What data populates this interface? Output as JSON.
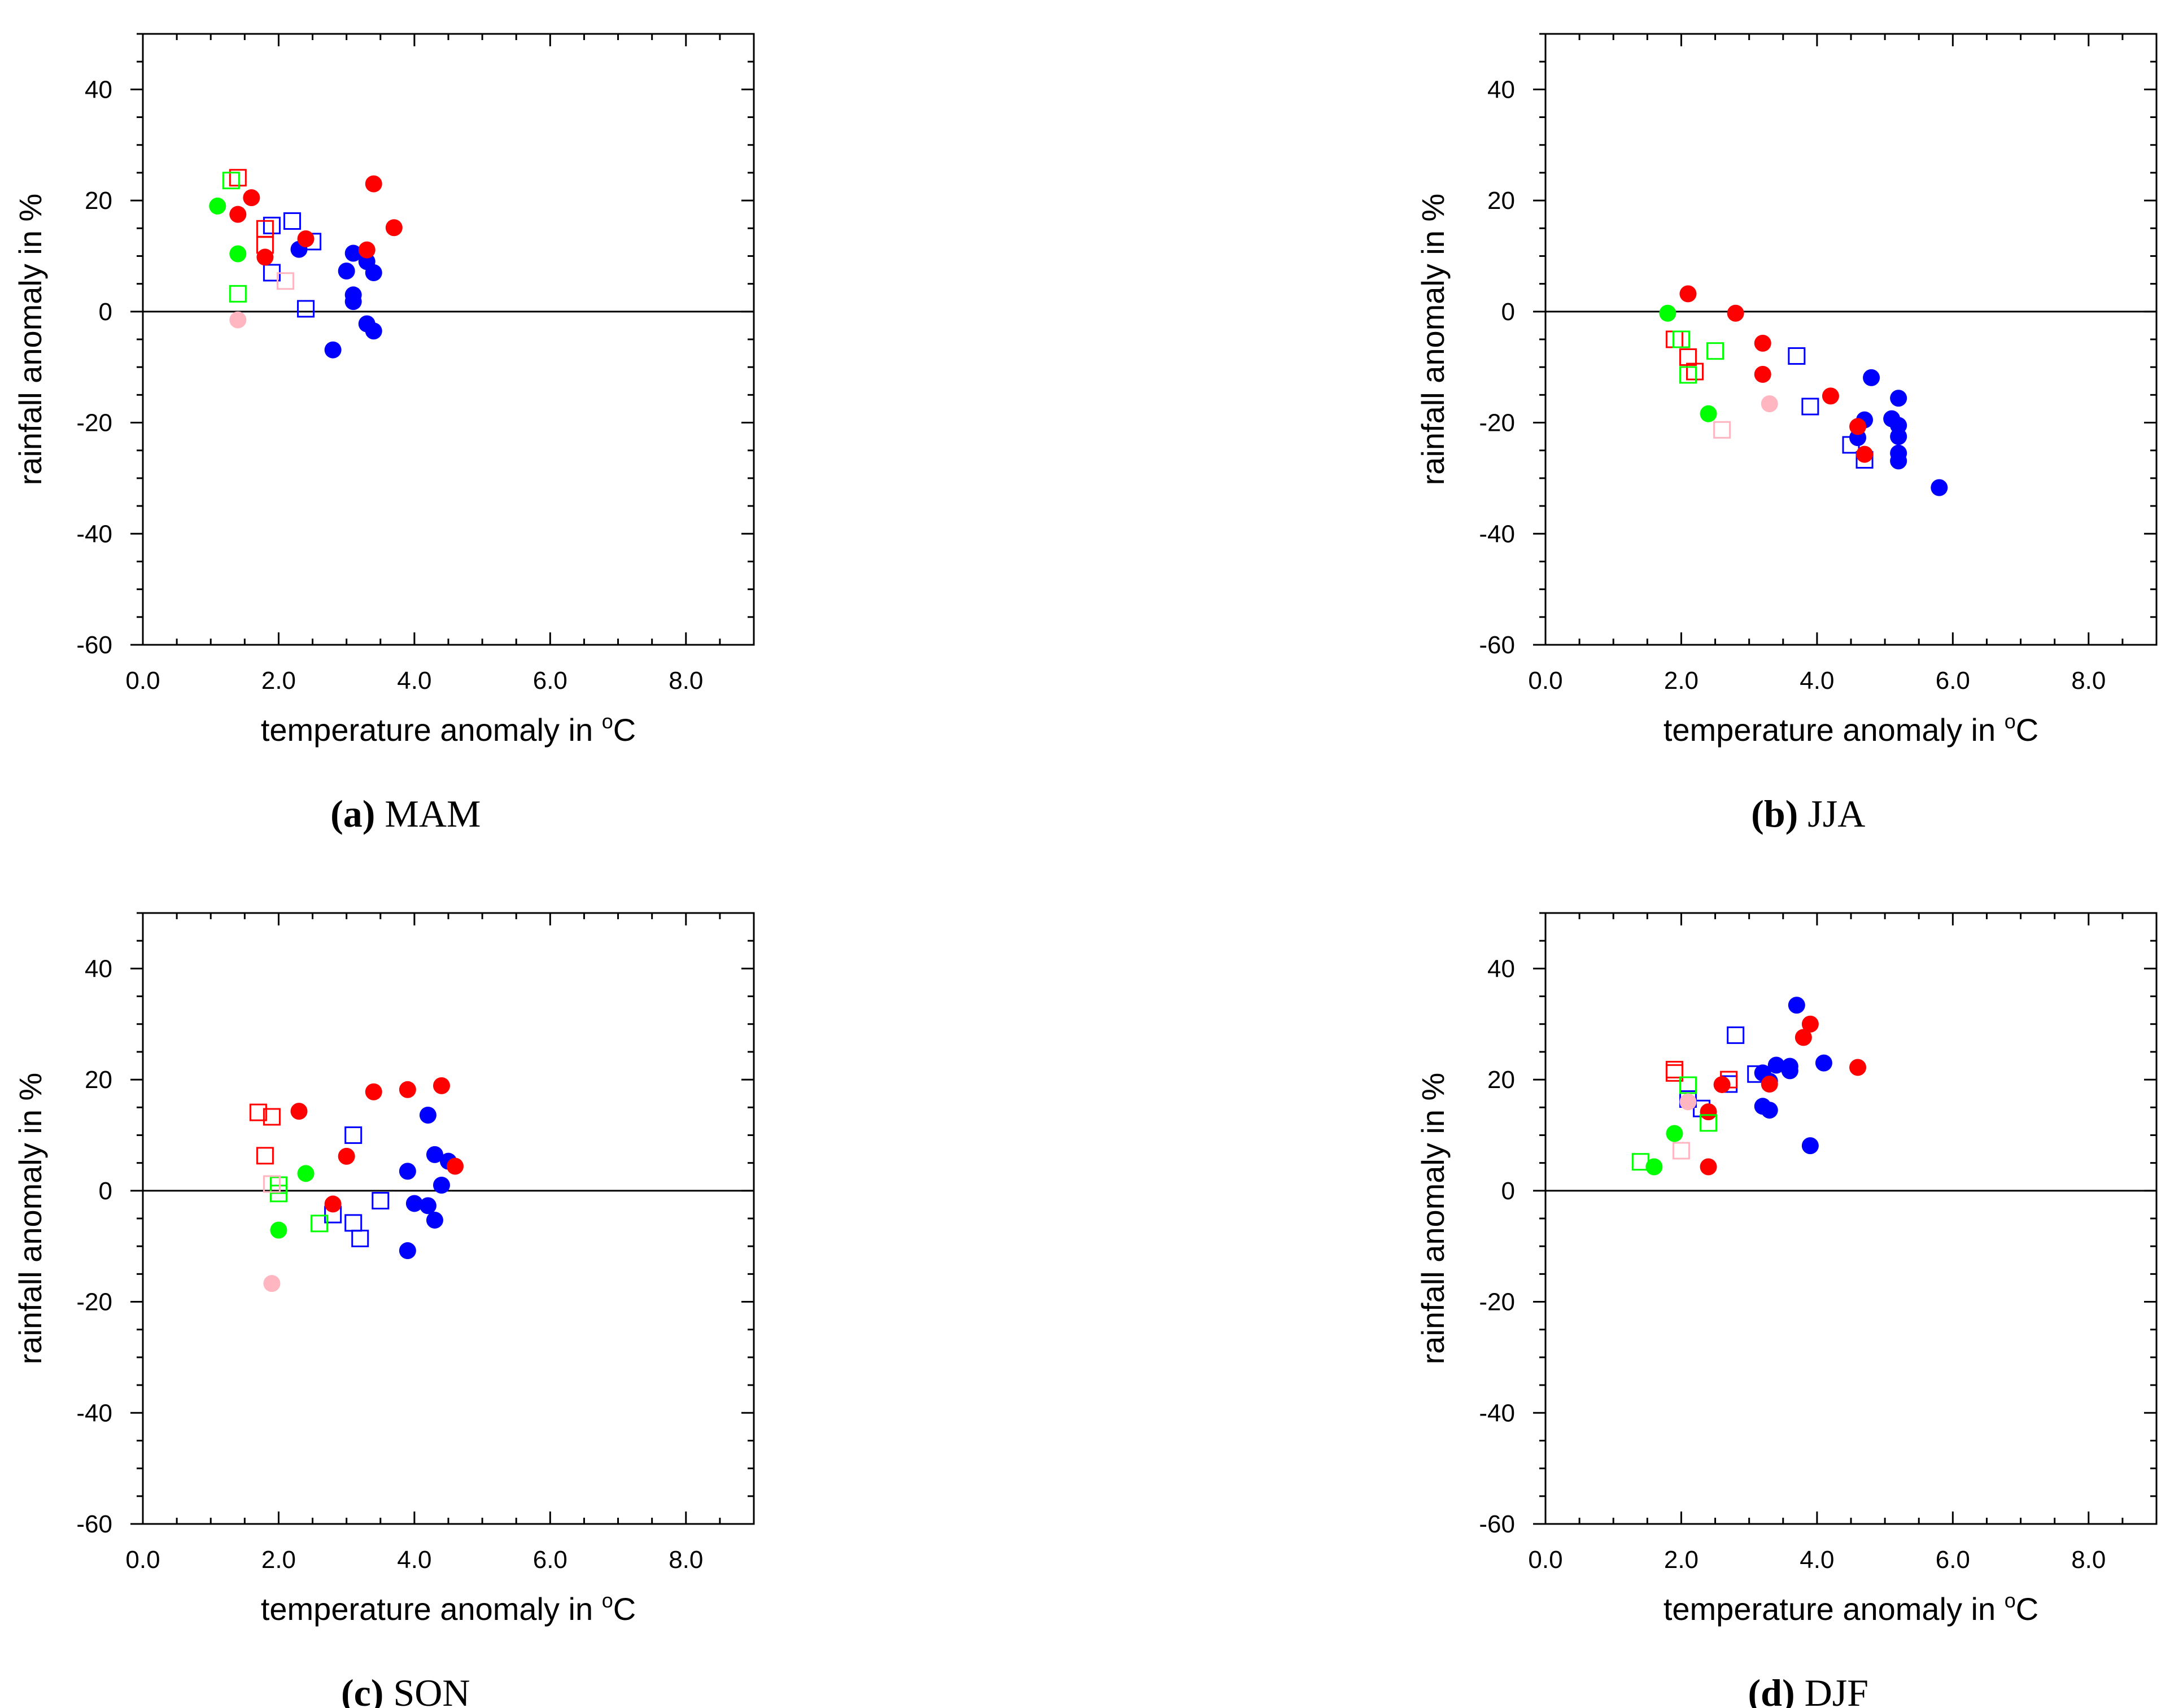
{
  "figure": {
    "colors": {
      "blue": "#0000ff",
      "red": "#ff0000",
      "green": "#00ff00",
      "pink": "#ffb6c1"
    }
  },
  "chart_data": [
    {
      "type": "scatter",
      "panel": "a",
      "caption_letter": "(a)",
      "caption_text": "MAM",
      "xlabel_main": "temperature anomaly in ",
      "xlabel_sup": "o",
      "xlabel_unit": "C",
      "ylabel": "rainfall anomaly in %",
      "xlim": [
        0,
        9
      ],
      "ylim": [
        -60,
        50
      ],
      "xticks": [
        "0.0",
        "2.0",
        "4.0",
        "6.0",
        "8.0"
      ],
      "yticks": [
        "40",
        "20",
        "0",
        "-20",
        "-40",
        "-60"
      ],
      "reference_line_y": 0,
      "series": [
        {
          "name": "blue-filled",
          "color": "blue",
          "marker": "circle",
          "filled": true,
          "points": [
            [
              2.3,
              11.2
            ],
            [
              3.1,
              10.5
            ],
            [
              3.3,
              9.0
            ],
            [
              3.4,
              7.0
            ],
            [
              3.0,
              7.3
            ],
            [
              3.1,
              3.0
            ],
            [
              3.1,
              1.8
            ],
            [
              3.3,
              -2.2
            ],
            [
              3.4,
              -3.5
            ],
            [
              2.8,
              -6.9
            ]
          ]
        },
        {
          "name": "blue-open",
          "color": "blue",
          "marker": "square",
          "filled": false,
          "points": [
            [
              2.2,
              16.3
            ],
            [
              1.9,
              15.5
            ],
            [
              2.5,
              12.6
            ],
            [
              1.9,
              7.0
            ],
            [
              2.4,
              0.5
            ]
          ]
        },
        {
          "name": "red-filled",
          "color": "red",
          "marker": "circle",
          "filled": true,
          "points": [
            [
              3.4,
              23.0
            ],
            [
              1.6,
              20.5
            ],
            [
              1.4,
              17.5
            ],
            [
              3.7,
              15.1
            ],
            [
              2.4,
              13.1
            ],
            [
              3.3,
              11.1
            ],
            [
              1.8,
              9.8
            ]
          ]
        },
        {
          "name": "red-open",
          "color": "red",
          "marker": "square",
          "filled": false,
          "points": [
            [
              1.4,
              24.1
            ],
            [
              1.8,
              14.9
            ],
            [
              1.8,
              12.0
            ]
          ]
        },
        {
          "name": "green-filled",
          "color": "green",
          "marker": "circle",
          "filled": true,
          "points": [
            [
              1.1,
              19.0
            ],
            [
              1.4,
              10.4
            ]
          ]
        },
        {
          "name": "green-open",
          "color": "green",
          "marker": "square",
          "filled": false,
          "points": [
            [
              1.3,
              23.6
            ],
            [
              1.4,
              3.2
            ]
          ]
        },
        {
          "name": "pink-filled",
          "color": "pink",
          "marker": "circle",
          "filled": true,
          "points": [
            [
              1.4,
              -1.5
            ]
          ]
        },
        {
          "name": "pink-open",
          "color": "pink",
          "marker": "square",
          "filled": false,
          "points": [
            [
              2.1,
              5.5
            ]
          ]
        }
      ]
    },
    {
      "type": "scatter",
      "panel": "b",
      "caption_letter": "(b)",
      "caption_text": "JJA",
      "xlabel_main": "temperature anomaly in ",
      "xlabel_sup": "o",
      "xlabel_unit": "C",
      "ylabel": "rainfall anomaly in %",
      "xlim": [
        0,
        9
      ],
      "ylim": [
        -60,
        50
      ],
      "xticks": [
        "0.0",
        "2.0",
        "4.0",
        "6.0",
        "8.0"
      ],
      "yticks": [
        "40",
        "20",
        "0",
        "-20",
        "-40",
        "-60"
      ],
      "reference_line_y": 0,
      "series": [
        {
          "name": "blue-filled",
          "color": "blue",
          "marker": "circle",
          "filled": true,
          "points": [
            [
              4.8,
              -11.9
            ],
            [
              5.2,
              -15.6
            ],
            [
              5.1,
              -19.3
            ],
            [
              4.7,
              -19.5
            ],
            [
              5.2,
              -20.5
            ],
            [
              5.2,
              -22.5
            ],
            [
              4.6,
              -22.7
            ],
            [
              5.2,
              -25.5
            ],
            [
              5.2,
              -26.9
            ],
            [
              5.8,
              -31.7
            ]
          ]
        },
        {
          "name": "blue-open",
          "color": "blue",
          "marker": "square",
          "filled": false,
          "points": [
            [
              3.7,
              -8.0
            ],
            [
              3.9,
              -17.1
            ],
            [
              4.5,
              -24.0
            ],
            [
              4.7,
              -26.7
            ]
          ]
        },
        {
          "name": "red-filled",
          "color": "red",
          "marker": "circle",
          "filled": true,
          "points": [
            [
              2.1,
              3.2
            ],
            [
              2.8,
              -0.3
            ],
            [
              3.2,
              -5.7
            ],
            [
              3.2,
              -11.3
            ],
            [
              4.2,
              -15.2
            ],
            [
              4.6,
              -20.7
            ],
            [
              4.7,
              -25.7
            ]
          ]
        },
        {
          "name": "red-open",
          "color": "red",
          "marker": "square",
          "filled": false,
          "points": [
            [
              1.9,
              -5.0
            ],
            [
              2.1,
              -8.2
            ],
            [
              2.2,
              -10.8
            ]
          ]
        },
        {
          "name": "green-filled",
          "color": "green",
          "marker": "circle",
          "filled": true,
          "points": [
            [
              1.8,
              -0.3
            ],
            [
              2.4,
              -18.4
            ]
          ]
        },
        {
          "name": "green-open",
          "color": "green",
          "marker": "square",
          "filled": false,
          "points": [
            [
              2.0,
              -5.0
            ],
            [
              2.5,
              -7.1
            ],
            [
              2.1,
              -11.4
            ]
          ]
        },
        {
          "name": "pink-filled",
          "color": "pink",
          "marker": "circle",
          "filled": true,
          "points": [
            [
              3.3,
              -16.6
            ]
          ]
        },
        {
          "name": "pink-open",
          "color": "pink",
          "marker": "square",
          "filled": false,
          "points": [
            [
              2.6,
              -21.3
            ]
          ]
        }
      ]
    },
    {
      "type": "scatter",
      "panel": "c",
      "caption_letter": "(c)",
      "caption_text": "SON",
      "xlabel_main": "temperature anomaly in ",
      "xlabel_sup": "o",
      "xlabel_unit": "C",
      "ylabel": "rainfall anomaly in %",
      "xlim": [
        0,
        9
      ],
      "ylim": [
        -60,
        50
      ],
      "xticks": [
        "0.0",
        "2.0",
        "4.0",
        "6.0",
        "8.0"
      ],
      "yticks": [
        "40",
        "20",
        "0",
        "-20",
        "-40",
        "-60"
      ],
      "reference_line_y": 0,
      "series": [
        {
          "name": "blue-filled",
          "color": "blue",
          "marker": "circle",
          "filled": true,
          "points": [
            [
              4.2,
              13.6
            ],
            [
              4.3,
              6.5
            ],
            [
              4.5,
              5.3
            ],
            [
              3.9,
              3.5
            ],
            [
              4.4,
              1.0
            ],
            [
              4.0,
              -2.3
            ],
            [
              4.2,
              -2.7
            ],
            [
              4.3,
              -5.3
            ],
            [
              3.9,
              -10.8
            ]
          ]
        },
        {
          "name": "blue-open",
          "color": "blue",
          "marker": "square",
          "filled": false,
          "points": [
            [
              3.1,
              10.0
            ],
            [
              3.5,
              -1.8
            ],
            [
              2.8,
              -4.3
            ],
            [
              3.1,
              -5.8
            ],
            [
              3.2,
              -8.6
            ]
          ]
        },
        {
          "name": "red-filled",
          "color": "red",
          "marker": "circle",
          "filled": true,
          "points": [
            [
              4.4,
              18.9
            ],
            [
              3.9,
              18.2
            ],
            [
              3.4,
              17.8
            ],
            [
              2.3,
              14.3
            ],
            [
              3.0,
              6.2
            ],
            [
              4.6,
              4.4
            ],
            [
              2.8,
              -2.4
            ]
          ]
        },
        {
          "name": "red-open",
          "color": "red",
          "marker": "square",
          "filled": false,
          "points": [
            [
              1.7,
              14.1
            ],
            [
              1.9,
              13.3
            ],
            [
              1.8,
              6.3
            ]
          ]
        },
        {
          "name": "green-filled",
          "color": "green",
          "marker": "circle",
          "filled": true,
          "points": [
            [
              2.4,
              3.1
            ],
            [
              2.0,
              -7.1
            ]
          ]
        },
        {
          "name": "green-open",
          "color": "green",
          "marker": "square",
          "filled": false,
          "points": [
            [
              2.0,
              1.0
            ],
            [
              2.0,
              -0.5
            ],
            [
              2.6,
              -5.9
            ]
          ]
        },
        {
          "name": "pink-filled",
          "color": "pink",
          "marker": "circle",
          "filled": true,
          "points": [
            [
              1.9,
              -16.7
            ]
          ]
        },
        {
          "name": "pink-open",
          "color": "pink",
          "marker": "square",
          "filled": false,
          "points": [
            [
              1.9,
              1.2
            ]
          ]
        }
      ]
    },
    {
      "type": "scatter",
      "panel": "d",
      "caption_letter": "(d)",
      "caption_text": "DJF",
      "xlabel_main": "temperature anomaly in ",
      "xlabel_sup": "o",
      "xlabel_unit": "C",
      "ylabel": "rainfall anomaly in %",
      "xlim": [
        0,
        9
      ],
      "ylim": [
        -60,
        50
      ],
      "xticks": [
        "0.0",
        "2.0",
        "4.0",
        "6.0",
        "8.0"
      ],
      "yticks": [
        "40",
        "20",
        "0",
        "-20",
        "-40",
        "-60"
      ],
      "reference_line_y": 0,
      "series": [
        {
          "name": "blue-filled",
          "color": "blue",
          "marker": "circle",
          "filled": true,
          "points": [
            [
              3.7,
              33.4
            ],
            [
              4.1,
              23.0
            ],
            [
              3.4,
              22.6
            ],
            [
              3.6,
              22.4
            ],
            [
              3.6,
              21.6
            ],
            [
              3.2,
              21.2
            ],
            [
              3.3,
              19.7
            ],
            [
              3.2,
              15.2
            ],
            [
              3.3,
              14.5
            ],
            [
              3.9,
              8.1
            ]
          ]
        },
        {
          "name": "blue-open",
          "color": "blue",
          "marker": "square",
          "filled": false,
          "points": [
            [
              2.8,
              28.0
            ],
            [
              3.1,
              21.0
            ],
            [
              2.7,
              19.2
            ],
            [
              2.1,
              16.5
            ],
            [
              2.3,
              14.8
            ]
          ]
        },
        {
          "name": "red-filled",
          "color": "red",
          "marker": "circle",
          "filled": true,
          "points": [
            [
              3.9,
              30.0
            ],
            [
              3.8,
              27.6
            ],
            [
              4.6,
              22.2
            ],
            [
              3.3,
              19.2
            ],
            [
              2.6,
              19.1
            ],
            [
              2.4,
              14.2
            ],
            [
              2.4,
              4.3
            ]
          ]
        },
        {
          "name": "red-open",
          "color": "red",
          "marker": "square",
          "filled": false,
          "points": [
            [
              1.9,
              21.8
            ],
            [
              1.9,
              21.2
            ],
            [
              2.7,
              20.0
            ]
          ]
        },
        {
          "name": "green-filled",
          "color": "green",
          "marker": "circle",
          "filled": true,
          "points": [
            [
              1.9,
              10.3
            ],
            [
              1.6,
              4.3
            ]
          ]
        },
        {
          "name": "green-open",
          "color": "green",
          "marker": "square",
          "filled": false,
          "points": [
            [
              2.1,
              19.0
            ],
            [
              2.4,
              12.2
            ],
            [
              1.4,
              5.2
            ]
          ]
        },
        {
          "name": "pink-filled",
          "color": "pink",
          "marker": "circle",
          "filled": true,
          "points": [
            [
              2.1,
              16.0
            ]
          ]
        },
        {
          "name": "pink-open",
          "color": "pink",
          "marker": "square",
          "filled": false,
          "points": [
            [
              2.0,
              7.2
            ]
          ]
        }
      ]
    }
  ]
}
